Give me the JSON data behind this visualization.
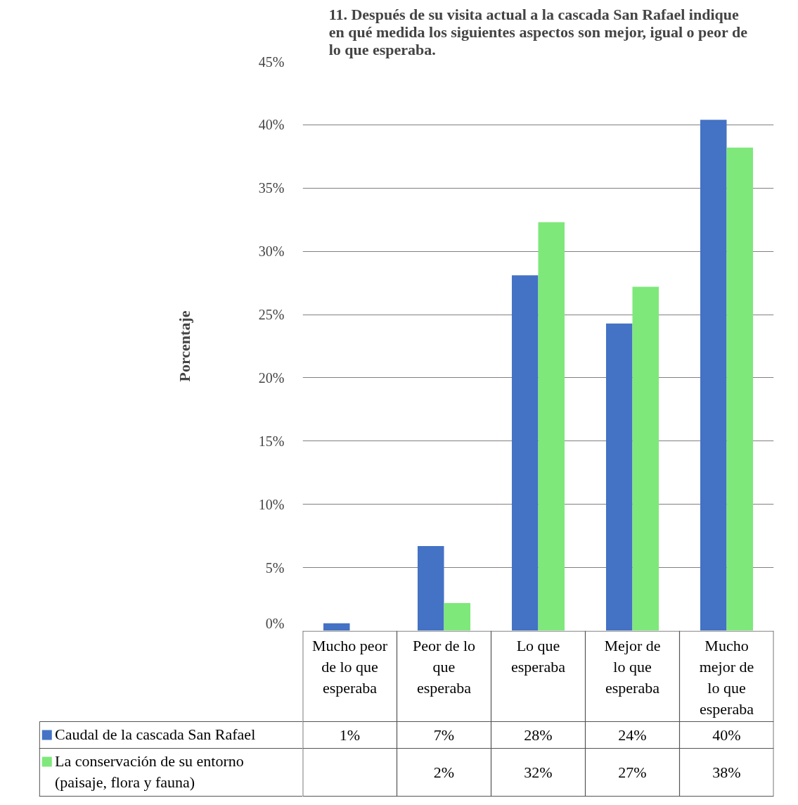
{
  "chart_data": {
    "type": "bar",
    "title": "11. Después de su visita actual a la cascada San Rafael indique en qué medida los siguientes aspectos son mejor, igual o peor de lo que esperaba.",
    "ylabel": "Porcentaje",
    "categories": [
      "Mucho peor de lo que esperaba",
      "Peor de lo que esperaba",
      "Lo que esperaba",
      "Mejor de lo que esperaba",
      "Mucho mejor de lo que esperaba"
    ],
    "series": [
      {
        "name": "Caudal de la cascada San Rafael",
        "color": "#4472c4",
        "values": [
          0.6,
          6.7,
          28.1,
          24.3,
          40.4
        ],
        "value_labels": [
          "1%",
          "7%",
          "28%",
          "24%",
          "40%"
        ]
      },
      {
        "name": "La conservación de su entorno (paisaje, flora y fauna)",
        "color": "#7ee87a",
        "values": [
          null,
          2.2,
          32.3,
          27.2,
          38.2
        ],
        "value_labels": [
          null,
          "2%",
          "32%",
          "27%",
          "38%"
        ]
      }
    ],
    "ylim": [
      0,
      45
    ],
    "yticks": [
      {
        "value": 0,
        "label": "0%"
      },
      {
        "value": 5,
        "label": "5%"
      },
      {
        "value": 10,
        "label": "10%"
      },
      {
        "value": 15,
        "label": "15%"
      },
      {
        "value": 20,
        "label": "20%"
      },
      {
        "value": 25,
        "label": "25%"
      },
      {
        "value": 30,
        "label": "30%"
      },
      {
        "value": 35,
        "label": "35%"
      },
      {
        "value": 40,
        "label": "40%"
      },
      {
        "value": 45,
        "label": "45%"
      }
    ],
    "grid": "y",
    "legend": "bottom"
  }
}
